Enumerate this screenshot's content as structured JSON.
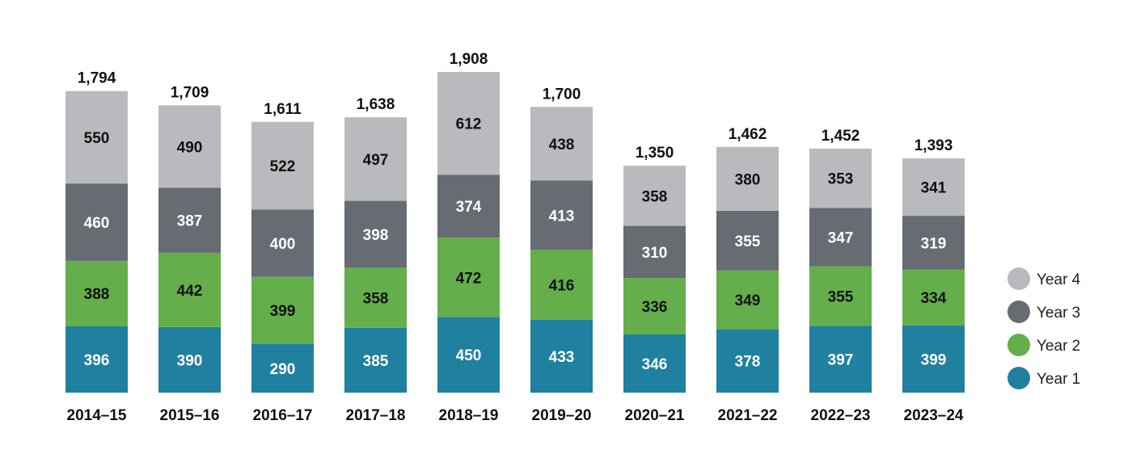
{
  "chart_data": {
    "type": "bar",
    "stacked": true,
    "categories": [
      "2014–15",
      "2015–16",
      "2016–17",
      "2017–18",
      "2018–19",
      "2019–20",
      "2020–21",
      "2021–22",
      "2022–23",
      "2023–24"
    ],
    "series": [
      {
        "name": "Year 1",
        "color": "#20809f",
        "label_color": "#ffffff",
        "values": [
          396,
          390,
          290,
          385,
          450,
          433,
          346,
          378,
          397,
          399
        ]
      },
      {
        "name": "Year 2",
        "color": "#64ae4c",
        "label_color": "#111111",
        "values": [
          388,
          442,
          399,
          358,
          472,
          416,
          336,
          349,
          355,
          334
        ]
      },
      {
        "name": "Year 3",
        "color": "#676b72",
        "label_color": "#ffffff",
        "values": [
          460,
          387,
          400,
          398,
          374,
          413,
          310,
          355,
          347,
          319
        ]
      },
      {
        "name": "Year 4",
        "color": "#b8babd",
        "label_color": "#111111",
        "values": [
          550,
          490,
          522,
          497,
          612,
          438,
          358,
          380,
          353,
          341
        ]
      }
    ],
    "totals": [
      "1,794",
      "1,709",
      "1,611",
      "1,638",
      "1,908",
      "1,700",
      "1,350",
      "1,462",
      "1,452",
      "1,393"
    ],
    "ylim": [
      0,
      1908
    ],
    "grid": false,
    "legend": "right",
    "title": "",
    "xlabel": "",
    "ylabel": ""
  }
}
